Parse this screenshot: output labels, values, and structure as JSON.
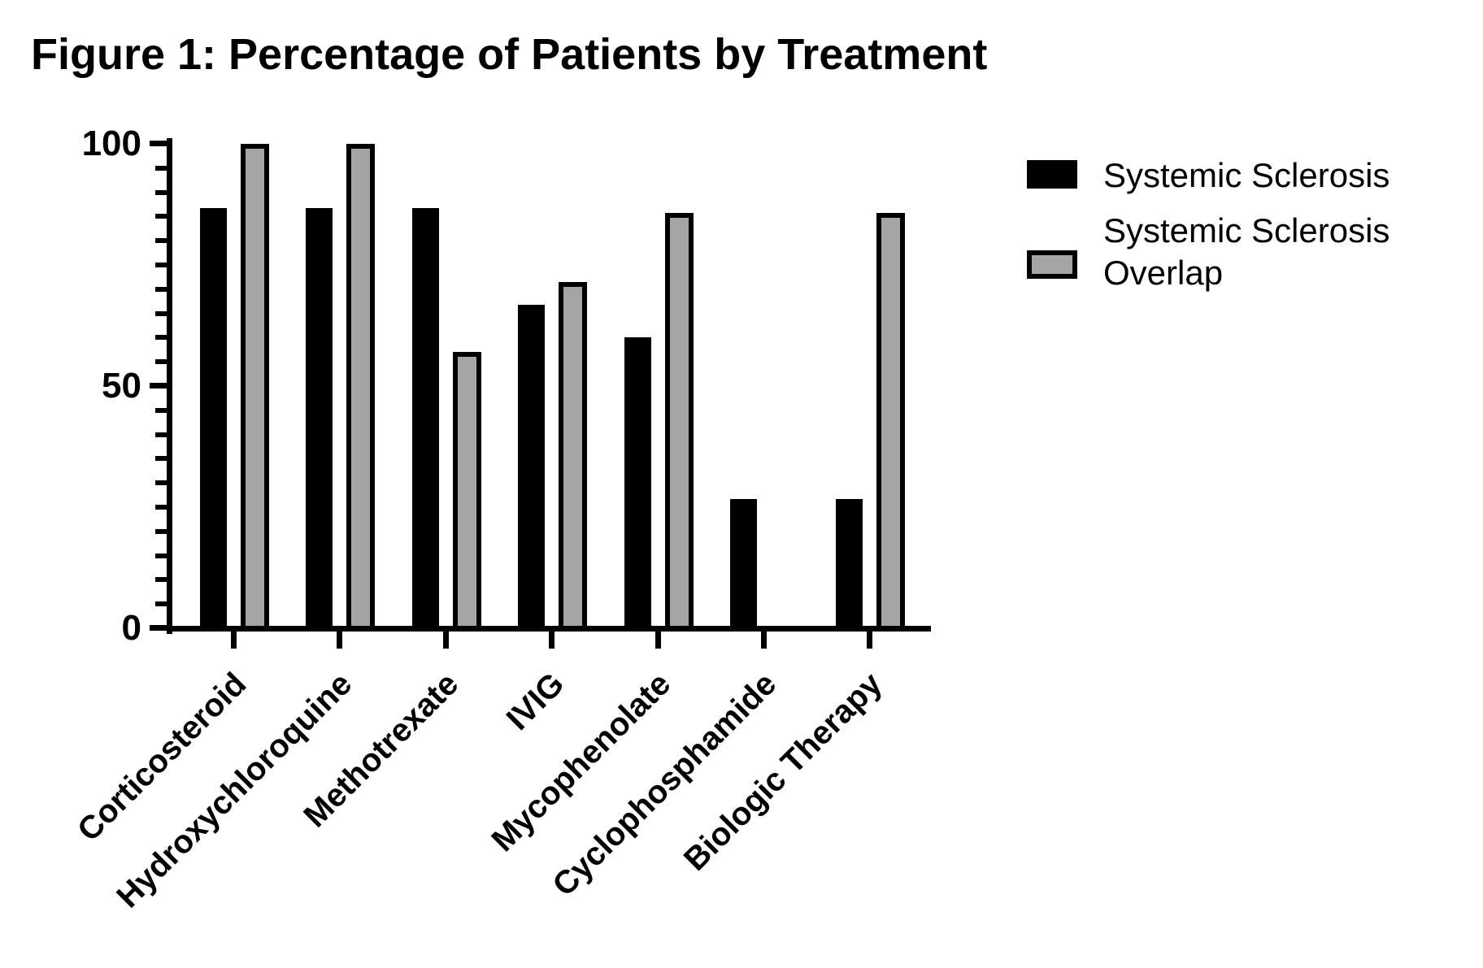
{
  "figure": {
    "title": "Figure 1: Percentage of Patients by Treatment"
  },
  "chart_data": {
    "type": "bar",
    "title": "Figure 1: Percentage of Patients by Treatment",
    "categories": [
      "Corticosteroid",
      "Hydroxychloroquine",
      "Methotrexate",
      "IVIG",
      "Mycophenolate",
      "Cyclophosphamide",
      "Biologic Therapy"
    ],
    "series": [
      {
        "name": "Systemic Sclerosis",
        "style": "solid",
        "color": "#000000",
        "values": [
          86.7,
          86.7,
          86.7,
          66.7,
          60,
          26.7,
          26.7
        ]
      },
      {
        "name": "Systemic Sclerosis Overlap",
        "style": "outlined",
        "color": "#a5a5a5",
        "border_color": "#000000",
        "values": [
          100,
          100,
          57.1,
          71.4,
          85.7,
          0,
          85.7
        ]
      }
    ],
    "xlabel": "",
    "ylabel": "",
    "ylim": [
      0,
      100
    ],
    "yticks_major": [
      0,
      50,
      100
    ],
    "ytick_minor_step": 5,
    "grid": false,
    "legend_position": "right",
    "legend": [
      {
        "swatch": "black",
        "lines": [
          "Systemic Sclerosis"
        ]
      },
      {
        "swatch": "gray-outlined",
        "lines": [
          "Systemic Sclerosis",
          "Overlap"
        ]
      }
    ]
  }
}
